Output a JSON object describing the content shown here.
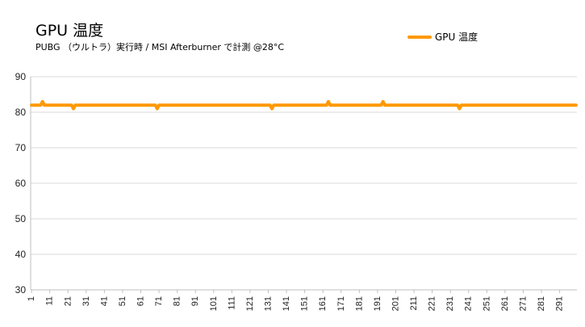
{
  "chart_data": {
    "type": "line",
    "title": "GPU 温度",
    "subtitle": "PUBG （ウルトラ）実行時 / MSI Afterburner で計測 @28°C",
    "ylim": [
      30,
      90
    ],
    "yticks": [
      30,
      40,
      50,
      60,
      70,
      80,
      90
    ],
    "xlim": [
      1,
      300
    ],
    "xticks": [
      1,
      11,
      21,
      31,
      41,
      51,
      61,
      71,
      81,
      91,
      101,
      111,
      121,
      131,
      141,
      151,
      161,
      171,
      181,
      191,
      201,
      211,
      221,
      231,
      241,
      251,
      261,
      271,
      281,
      291
    ],
    "grid": true,
    "legend_position": "top-right",
    "series": [
      {
        "name": "GPU 温度",
        "color": "#ff9900",
        "base_value": 82,
        "deviations": [
          {
            "x": 7,
            "y": 83
          },
          {
            "x": 24,
            "y": 81
          },
          {
            "x": 70,
            "y": 81
          },
          {
            "x": 133,
            "y": 81
          },
          {
            "x": 164,
            "y": 83
          },
          {
            "x": 194,
            "y": 83
          },
          {
            "x": 236,
            "y": 81
          }
        ]
      }
    ]
  },
  "colors": {
    "grid": "#d9d9d9",
    "axis": "#bfbfbf",
    "series": "#ff9900"
  }
}
